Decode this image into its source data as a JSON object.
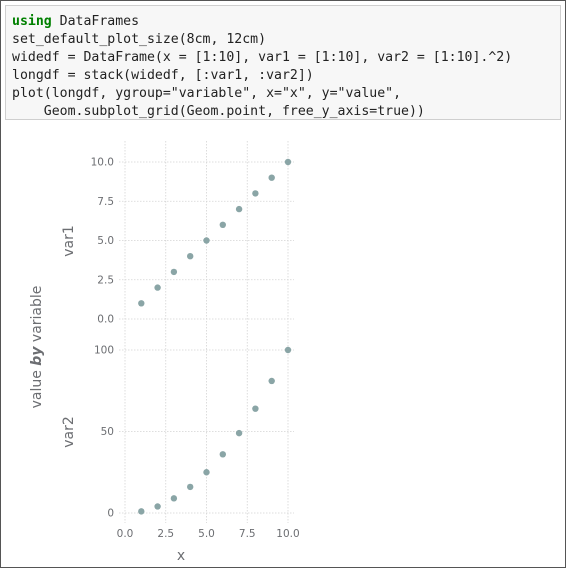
{
  "notebook": {
    "code_cell": {
      "lines": [
        {
          "keyword": "using",
          "text": " DataFrames"
        },
        {
          "keyword": "",
          "text": "set_default_plot_size(8cm, 12cm)"
        },
        {
          "keyword": "",
          "text": "widedf = DataFrame(x = [1:10], var1 = [1:10], var2 = [1:10].^2)"
        },
        {
          "keyword": "",
          "text": "longdf = stack(widedf, [:var1, :var2])"
        },
        {
          "keyword": "",
          "text": "plot(longdf, ygroup=\"variable\", x=\"x\", y=\"value\","
        },
        {
          "keyword": "",
          "text": "    Geom.subplot_grid(Geom.point, free_y_axis=true))"
        }
      ]
    },
    "output": {
      "chart_data": {
        "type": "scatter",
        "facet_by": "variable",
        "xlabel": "x",
        "ylabel_prefix": "value",
        "ylabel_by": "by",
        "ylabel_suffix": "variable",
        "point_color": "#8aa5a6",
        "grid_color": "#d4d4d4",
        "grid": true,
        "x": [
          1,
          2,
          3,
          4,
          5,
          6,
          7,
          8,
          9,
          10
        ],
        "xlim": [
          0,
          10
        ],
        "xticks": [
          0,
          2.5,
          5,
          7.5,
          10
        ],
        "xtick_labels": [
          "0.0",
          "2.5",
          "5.0",
          "7.5",
          "10.0"
        ],
        "panels": [
          {
            "name": "var1",
            "values": [
              1,
              2,
              3,
              4,
              5,
              6,
              7,
              8,
              9,
              10
            ],
            "ylim": [
              0,
              10
            ],
            "yticks": [
              0,
              2.5,
              5,
              7.5,
              10
            ],
            "ytick_labels": [
              "0.0",
              "2.5",
              "5.0",
              "7.5",
              "10.0"
            ]
          },
          {
            "name": "var2",
            "values": [
              1,
              4,
              9,
              16,
              25,
              36,
              49,
              64,
              81,
              100
            ],
            "ylim": [
              0,
              100
            ],
            "yticks": [
              0,
              50,
              100
            ],
            "ytick_labels": [
              "0",
              "50",
              "100"
            ]
          }
        ]
      }
    }
  }
}
